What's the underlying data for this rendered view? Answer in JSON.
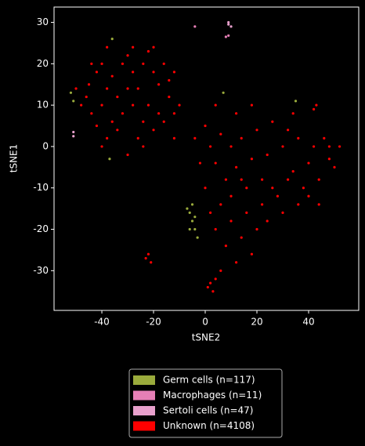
{
  "chart_data": {
    "type": "scatter",
    "x_label": "tSNE2",
    "y_label": "tSNE1",
    "xlim": [
      -58.5,
      59.4
    ],
    "ylim": [
      -39.6,
      33.7
    ],
    "xticks": [
      -40,
      -20,
      0,
      20,
      40
    ],
    "yticks": [
      -30,
      -20,
      -10,
      0,
      10,
      20,
      30
    ],
    "legend": "below",
    "series": [
      {
        "name": "Germ cells (n=117)",
        "color": "#9aab3c",
        "x": [
          -6,
          -5,
          -7,
          -4,
          -3,
          -6,
          -5,
          -52,
          -51,
          -36,
          7,
          35,
          -37,
          -4
        ],
        "y": [
          -16,
          -18,
          -15,
          -20,
          -22,
          -20,
          -14,
          13,
          11,
          26,
          13,
          11,
          -3,
          -17
        ]
      },
      {
        "name": "Macrophages (n=11)",
        "color": "#e67fb6",
        "x": [
          8,
          9,
          -4
        ],
        "y": [
          26.5,
          26.8,
          29
        ]
      },
      {
        "name": "Sertoli cells (n=47)",
        "color": "#e8a0cc",
        "x": [
          9,
          10,
          9,
          -51,
          -51
        ],
        "y": [
          29.5,
          29,
          30,
          3.5,
          2.5
        ]
      },
      {
        "name": "Unknown (n=4108)",
        "color": "#ff0000",
        "x": [
          -45,
          -42,
          -40,
          -38,
          -36,
          -34,
          -32,
          -30,
          -28,
          -26,
          -24,
          -22,
          -20,
          -18,
          -16,
          -14,
          -12,
          -44,
          -40,
          -36,
          -32,
          -28,
          -24,
          -20,
          -16,
          -12,
          -46,
          -42,
          -38,
          -34,
          -30,
          -26,
          -22,
          -18,
          -14,
          -10,
          -48,
          -44,
          -38,
          -28,
          -20,
          -50,
          -30,
          -24,
          -40,
          -12,
          0,
          2,
          4,
          6,
          8,
          10,
          12,
          14,
          16,
          18,
          20,
          22,
          24,
          26,
          28,
          30,
          32,
          34,
          36,
          38,
          40,
          42,
          44,
          46,
          48,
          50,
          52,
          0,
          2,
          4,
          6,
          8,
          10,
          12,
          14,
          16,
          18,
          20,
          22,
          24,
          26,
          10,
          14,
          6,
          4,
          12,
          18,
          -2,
          -4,
          30,
          36,
          40,
          44,
          48,
          34,
          32,
          -22,
          -21,
          -23,
          2,
          3,
          4,
          42,
          43,
          1
        ],
        "y": [
          15,
          18,
          20,
          14,
          17,
          12,
          20,
          22,
          18,
          14,
          20,
          23,
          18,
          15,
          20,
          12,
          8,
          8,
          10,
          6,
          8,
          10,
          6,
          4,
          6,
          2,
          12,
          5,
          2,
          4,
          14,
          2,
          10,
          8,
          16,
          10,
          10,
          20,
          24,
          24,
          24,
          14,
          -2,
          0,
          0,
          18,
          5,
          0,
          -4,
          3,
          -8,
          0,
          -5,
          2,
          -10,
          -3,
          4,
          -8,
          -2,
          6,
          -12,
          0,
          4,
          -6,
          2,
          -10,
          -4,
          0,
          -8,
          2,
          -3,
          -5,
          0,
          -10,
          -16,
          -20,
          -14,
          -24,
          -18,
          -28,
          -22,
          -16,
          -26,
          -20,
          -14,
          -18,
          -10,
          -12,
          -8,
          -30,
          10,
          8,
          10,
          -4,
          2,
          -16,
          -14,
          -12,
          -14,
          0,
          8,
          -8,
          -26,
          -28,
          -27,
          -33,
          -35,
          -32,
          9,
          10,
          -34
        ]
      }
    ]
  }
}
